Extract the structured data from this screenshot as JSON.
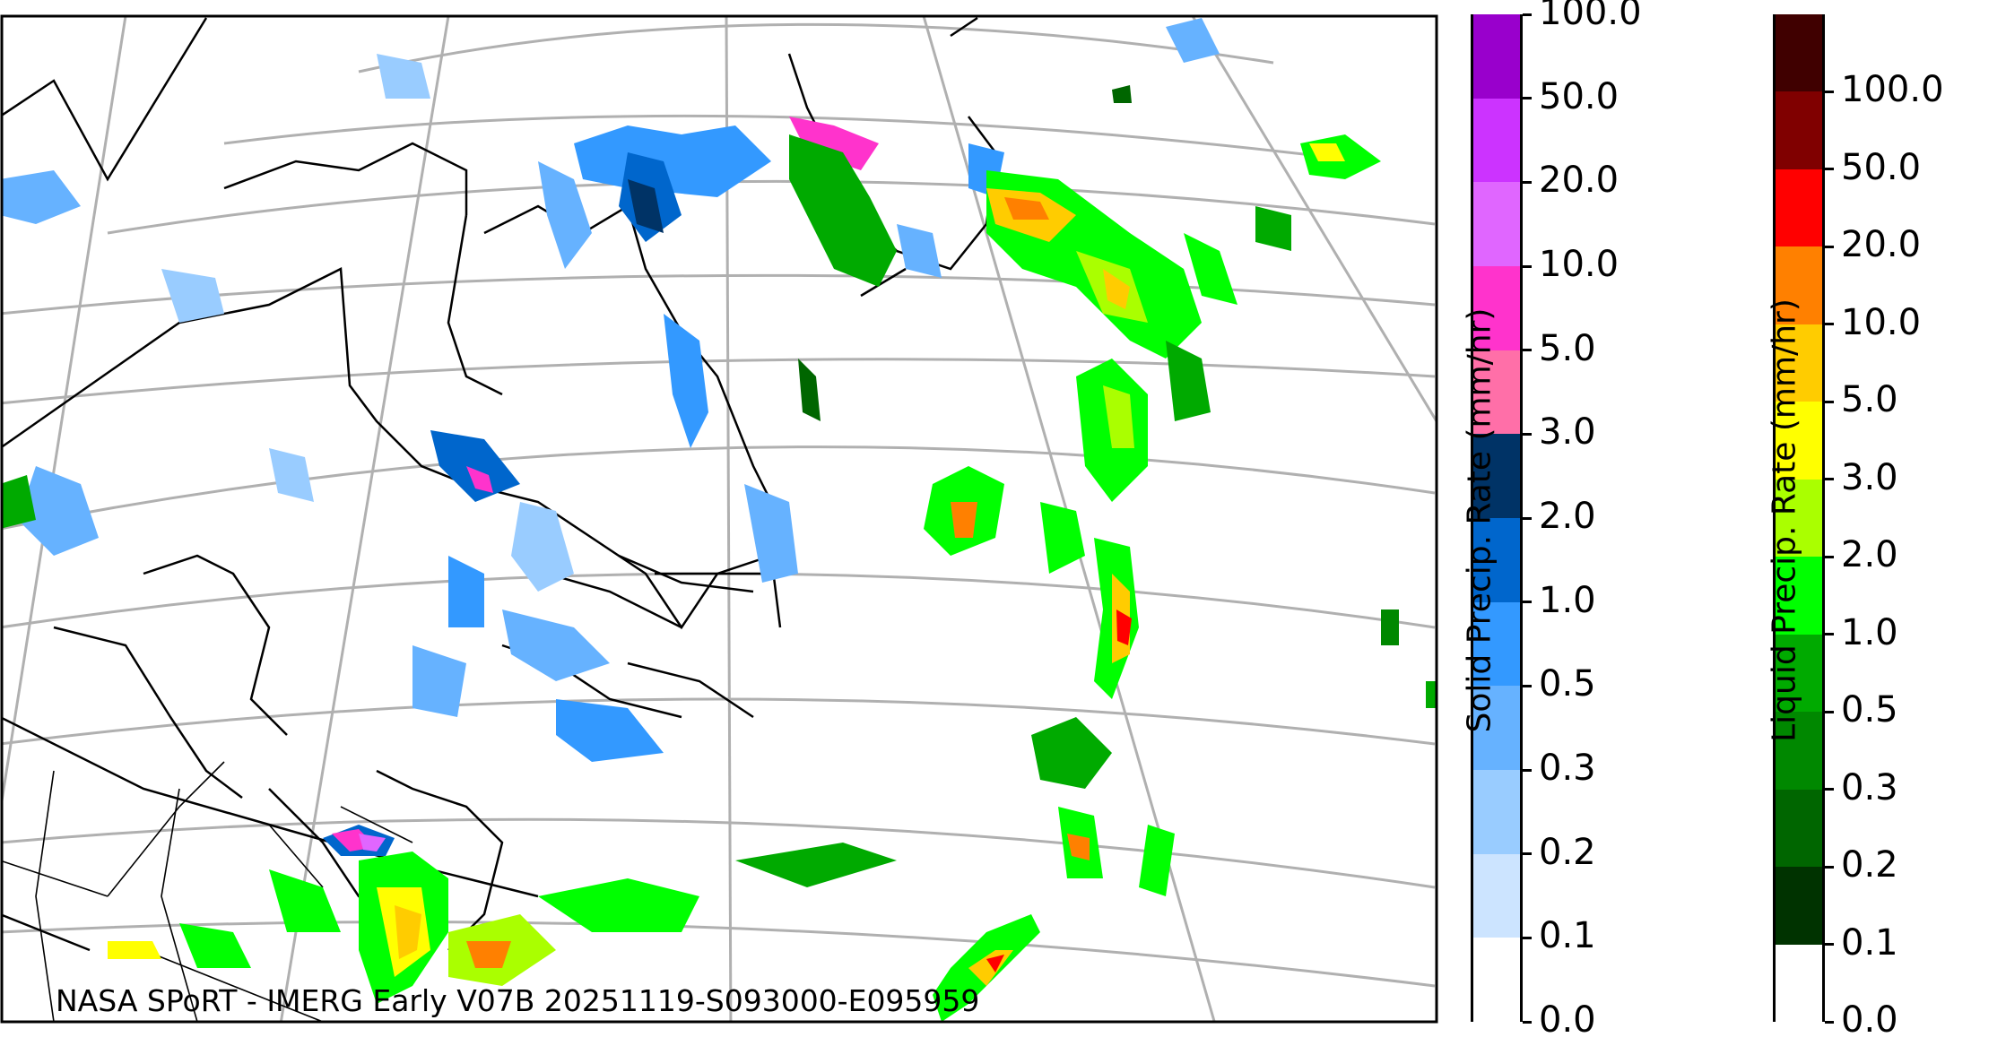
{
  "credit_text": "NASA SPoRT - IMERG Early V07B 20251119-S093000-E095959",
  "solid_colorbar": {
    "label": "Solid Precip. Rate (mm/hr)",
    "ticks": [
      "0.0",
      "0.1",
      "0.2",
      "0.3",
      "0.5",
      "1.0",
      "2.0",
      "3.0",
      "5.0",
      "10.0",
      "20.0",
      "50.0",
      "100.0"
    ],
    "colors": [
      "#ffffff",
      "#cce4ff",
      "#99ccff",
      "#66b2ff",
      "#3399ff",
      "#0066cc",
      "#003366",
      "#ff6fa8",
      "#ff33cc",
      "#e066ff",
      "#cc33ff",
      "#9900cc"
    ]
  },
  "liquid_colorbar": {
    "label": "Liquid Precip. Rate (mm/hr)",
    "ticks": [
      "0.0",
      "0.1",
      "0.2",
      "0.3",
      "0.5",
      "1.0",
      "2.0",
      "3.0",
      "5.0",
      "10.0",
      "20.0",
      "50.0",
      "100.0"
    ],
    "colors": [
      "#ffffff",
      "#003300",
      "#006600",
      "#008800",
      "#00aa00",
      "#00ff00",
      "#aaff00",
      "#ffff00",
      "#ffcc00",
      "#ff8000",
      "#ff0000",
      "#800000",
      "#400000"
    ]
  },
  "map": {
    "projection": "polar conic (North Atlantic / eastern Canada)",
    "graticule_color": "#b0b0b0",
    "coastline_color": "#000000"
  }
}
